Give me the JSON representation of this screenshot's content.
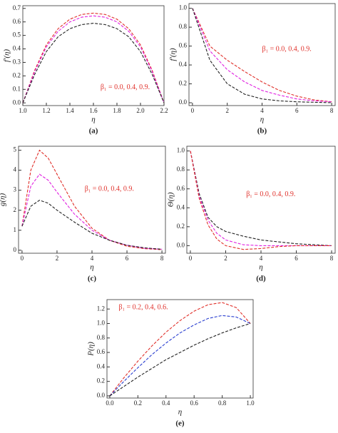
{
  "chart_data": [
    {
      "type": "line",
      "label": "(a)",
      "xlabel": "η",
      "ylabel": "f'(η)",
      "annotation": "β₁ = 0.0, 0.4, 0.9.",
      "dashed": true,
      "x": [
        1.0,
        1.1,
        1.2,
        1.3,
        1.4,
        1.5,
        1.6,
        1.7,
        1.8,
        1.9,
        2.0,
        2.1,
        2.2
      ],
      "series": [
        {
          "color": "#e0302a",
          "values": [
            0,
            0.24,
            0.43,
            0.55,
            0.62,
            0.655,
            0.665,
            0.655,
            0.62,
            0.55,
            0.43,
            0.24,
            0
          ]
        },
        {
          "color": "#e020e0",
          "values": [
            0,
            0.23,
            0.415,
            0.53,
            0.6,
            0.635,
            0.645,
            0.635,
            0.6,
            0.53,
            0.415,
            0.23,
            0
          ]
        },
        {
          "color": "#222222",
          "values": [
            0,
            0.21,
            0.38,
            0.49,
            0.55,
            0.58,
            0.59,
            0.58,
            0.55,
            0.49,
            0.38,
            0.21,
            0
          ]
        }
      ],
      "xlim": [
        1.0,
        2.2
      ],
      "xticks": [
        {
          "value": 1.0,
          "label": "1.0"
        },
        1.2,
        1.4,
        1.6,
        1.8,
        {
          "value": 2.0,
          "label": "2.0"
        },
        2.2
      ],
      "ylim": [
        -0.02,
        0.72
      ],
      "yticks": [
        {
          "value": 0,
          "label": "0.0"
        },
        0.1,
        0.2,
        0.3,
        0.4,
        0.5,
        0.6,
        0.7
      ]
    },
    {
      "type": "line",
      "label": "(b)",
      "xlabel": "η",
      "ylabel": "f'(η)",
      "annotation": "β₁ = 0.0, 0.4, 0.9.",
      "dashed": true,
      "x": [
        0,
        1,
        2,
        3,
        4,
        5,
        6,
        7,
        8
      ],
      "series": [
        {
          "color": "#e0302a",
          "values": [
            1.0,
            0.6,
            0.45,
            0.33,
            0.22,
            0.13,
            0.07,
            0.03,
            0.01
          ]
        },
        {
          "color": "#e020e0",
          "values": [
            1.0,
            0.55,
            0.35,
            0.22,
            0.13,
            0.08,
            0.04,
            0.02,
            0.01
          ]
        },
        {
          "color": "#222222",
          "values": [
            1.0,
            0.45,
            0.2,
            0.09,
            0.04,
            0.02,
            0.01,
            0.005,
            0
          ]
        }
      ],
      "xlim": [
        -0.2,
        8.2
      ],
      "xticks": [
        0,
        2,
        4,
        6,
        8
      ],
      "ylim": [
        -0.03,
        1.05
      ],
      "yticks": [
        {
          "value": 0,
          "label": "0.0"
        },
        0.2,
        0.4,
        0.6,
        0.8,
        {
          "value": 1.0,
          "label": "1.0"
        }
      ]
    },
    {
      "type": "line",
      "label": "(c)",
      "xlabel": "η",
      "ylabel": "g(η)",
      "annotation": "β₁ = 0.0, 0.4, 0.9.",
      "dashed": true,
      "x": [
        0,
        0.5,
        1,
        1.5,
        2,
        3,
        4,
        5,
        6,
        7,
        8
      ],
      "series": [
        {
          "color": "#e0302a",
          "values": [
            1.2,
            4.0,
            5.0,
            4.6,
            3.8,
            2.2,
            1.1,
            0.5,
            0.2,
            0.08,
            0.03
          ]
        },
        {
          "color": "#e020e0",
          "values": [
            1.2,
            3.2,
            3.8,
            3.5,
            2.9,
            1.8,
            1.0,
            0.5,
            0.25,
            0.1,
            0.05
          ]
        },
        {
          "color": "#222222",
          "values": [
            1.2,
            2.2,
            2.5,
            2.35,
            2.0,
            1.4,
            0.85,
            0.5,
            0.25,
            0.12,
            0.05
          ]
        }
      ],
      "xlim": [
        -0.2,
        8.2
      ],
      "xticks": [
        0,
        2,
        4,
        6,
        8
      ],
      "ylim": [
        -0.15,
        5.2
      ],
      "yticks": [
        0,
        1,
        2,
        3,
        4,
        5
      ]
    },
    {
      "type": "line",
      "label": "(d)",
      "xlabel": "η",
      "ylabel": "Θ(η)",
      "annotation": "β₁ = 0.0, 0.4, 0.9.",
      "dashed": true,
      "x": [
        0,
        0.5,
        1,
        1.5,
        2,
        3,
        4,
        5,
        6,
        8
      ],
      "series": [
        {
          "color": "#222222",
          "values": [
            1.0,
            0.55,
            0.3,
            0.2,
            0.15,
            0.1,
            0.06,
            0.04,
            0.02,
            0
          ]
        },
        {
          "color": "#e020e0",
          "values": [
            1.0,
            0.52,
            0.27,
            0.13,
            0.06,
            0.01,
            0,
            0,
            0,
            0
          ]
        },
        {
          "color": "#e0302a",
          "values": [
            1.0,
            0.5,
            0.22,
            0.07,
            0,
            -0.04,
            -0.03,
            -0.01,
            0,
            0
          ]
        }
      ],
      "xlim": [
        -0.2,
        8.2
      ],
      "xticks": [
        0,
        2,
        4,
        6,
        8
      ],
      "ylim": [
        -0.08,
        1.05
      ],
      "yticks": [
        {
          "value": 0,
          "label": "0.0"
        },
        0.2,
        0.4,
        0.6,
        0.8,
        {
          "value": 1.0,
          "label": "1.0"
        }
      ]
    },
    {
      "type": "line",
      "label": "(e)",
      "xlabel": "η",
      "ylabel": "P(η)",
      "annotation": "β₁ = 0.2, 0.4, 0.6.",
      "dashed": true,
      "x": [
        0,
        0.1,
        0.2,
        0.3,
        0.4,
        0.5,
        0.6,
        0.7,
        0.8,
        0.9,
        1.0
      ],
      "series": [
        {
          "color": "#e0302a",
          "values": [
            0,
            0.25,
            0.48,
            0.69,
            0.88,
            1.04,
            1.17,
            1.26,
            1.29,
            1.22,
            1.0
          ]
        },
        {
          "color": "#2a3fd0",
          "values": [
            0,
            0.2,
            0.39,
            0.57,
            0.73,
            0.87,
            0.98,
            1.07,
            1.11,
            1.09,
            1.0
          ]
        },
        {
          "color": "#222222",
          "values": [
            0,
            0.13,
            0.26,
            0.38,
            0.5,
            0.6,
            0.7,
            0.79,
            0.87,
            0.94,
            1.0
          ]
        }
      ],
      "xlim": [
        -0.02,
        1.02
      ],
      "xticks": [
        {
          "value": 0,
          "label": "0.0"
        },
        0.2,
        0.4,
        0.6,
        0.8,
        {
          "value": 1.0,
          "label": "1.0"
        }
      ],
      "ylim": [
        -0.03,
        1.33
      ],
      "yticks": [
        {
          "value": 0,
          "label": "0.0"
        },
        0.2,
        0.4,
        0.6,
        0.8,
        {
          "value": 1.0,
          "label": "1.0"
        },
        1.2
      ]
    }
  ]
}
